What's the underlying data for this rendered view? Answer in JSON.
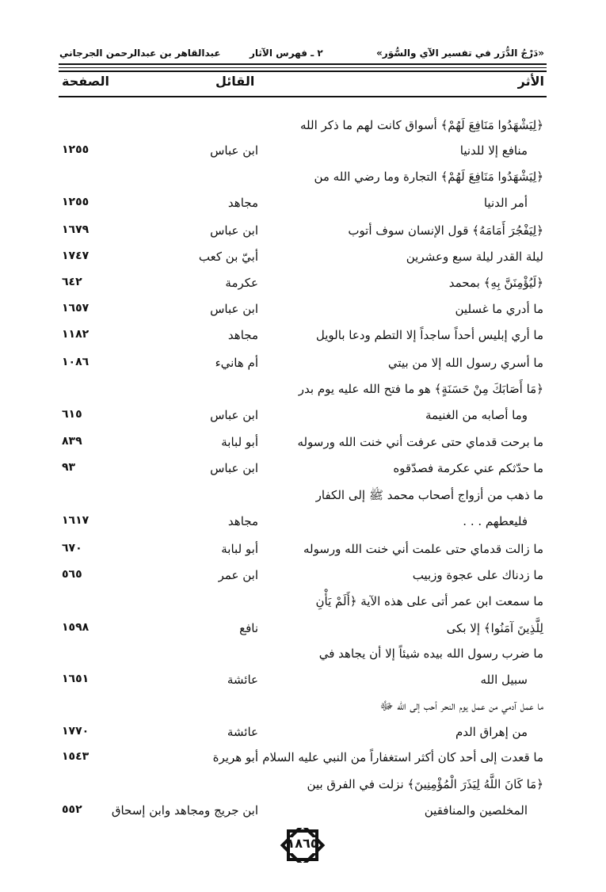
{
  "header": {
    "book_title": "«دَرْجُ الدُّرَر في تفسير الآي والسُّوَر»",
    "section": "٢ ـ فهرس الآثار",
    "author": "عبدالقاهر بن عبدالرحمن الجرجاني"
  },
  "columns": {
    "athar": "الأثر",
    "qail": "القائل",
    "page": "الصفحة"
  },
  "lines": [
    {
      "text": "﴿لِيَشْهَدُوا مَنَافِعَ لَهُمْ﴾ أسواق كانت لهم ما ذكر الله",
      "speaker": "",
      "page": ""
    },
    {
      "text": "منافع إلا للدنيا",
      "speaker": "ابن عباس",
      "page": "١٢٥٥",
      "indent": true
    },
    {
      "text": "﴿لِيَشْهَدُوا مَنَافِعَ لَهُمْ﴾ التجارة وما رضي الله من",
      "speaker": "",
      "page": ""
    },
    {
      "text": "أمر الدنيا",
      "speaker": "مجاهد",
      "page": "١٢٥٥",
      "indent": true
    },
    {
      "text": "﴿لِيَفْجُرَ أَمَامَهُ﴾ قول الإنسان سوف أتوب",
      "speaker": "ابن عباس",
      "page": "١٦٧٩"
    },
    {
      "text": "ليلة القدر ليلة سبع وعشرين",
      "speaker": "أبيّ بن كعب",
      "page": "١٧٤٧"
    },
    {
      "text": "﴿لَيُؤْمِنَنَّ بِهِ﴾ بمحمد",
      "speaker": "عكرمة",
      "page": "٦٤٢"
    },
    {
      "text": "ما أدري ما غسلين",
      "speaker": "ابن عباس",
      "page": "١٦٥٧"
    },
    {
      "text": "ما أري إبليس أحداً ساجداً إلا التطم ودعا بالويل",
      "speaker": "مجاهد",
      "page": "١١٨٢"
    },
    {
      "text": "ما أسري رسول الله إلا من بيتي",
      "speaker": "أم هانيء",
      "page": "١٠٨٦"
    },
    {
      "text": "﴿مَا أَصَابَكَ مِنْ حَسَنَةٍ﴾ هو ما فتح الله عليه يوم بدر",
      "speaker": "",
      "page": ""
    },
    {
      "text": "وما أصابه من الغنيمة",
      "speaker": "ابن عباس",
      "page": "٦١٥",
      "indent": true
    },
    {
      "text": "ما برحت قدماي حتى عرفت أني خنت الله ورسوله",
      "speaker": "أبو لبابة",
      "page": "٨٣٩"
    },
    {
      "text": "ما حدّثكم عني عكرمة فصدّقوه",
      "speaker": "ابن عباس",
      "page": "٩٣"
    },
    {
      "text": "ما ذهب من أزواج أصحاب محمد ﷺ إلى الكفار",
      "speaker": "",
      "page": ""
    },
    {
      "text": "فليعطهم . . .",
      "speaker": "مجاهد",
      "page": "١٦١٧",
      "indent": true
    },
    {
      "text": "ما زالت قدماي حتى علمت أني خنت الله ورسوله",
      "speaker": "أبو لبابة",
      "page": "٦٧٠"
    },
    {
      "text": "ما زدناك على عجوة وزبيب",
      "speaker": "ابن عمر",
      "page": "٥٦٥"
    },
    {
      "text": "ما سمعت ابن عمر أتى على هذه الآية ﴿أَلَمْ يَأْنِ",
      "speaker": "",
      "page": ""
    },
    {
      "text": "لِلَّذِينَ آمَنُوا﴾ إلا بكى",
      "speaker": "نافع",
      "page": "١٥٩٨"
    },
    {
      "text": "ما ضرب رسول الله بيده شيئاً إلا أن يجاهد في",
      "speaker": "",
      "page": ""
    },
    {
      "text": "سبيل الله",
      "speaker": "عائشة",
      "page": "١٦٥١",
      "indent": true
    },
    {
      "text": "ما عمل آدمي من عمل يوم النحر أحب إلى الله ﷻ",
      "speaker": "",
      "page": ""
    },
    {
      "text": "من إهراق الدم",
      "speaker": "عائشة",
      "page": "١٧٧٠",
      "indent": true
    },
    {
      "text": "ما قعدت إلى أحد كان أكثر استغفاراً من النبي عليه السلام",
      "speaker": "أبو هريرة",
      "page": "١٥٤٣"
    },
    {
      "text": "﴿مَا كَانَ اللَّهُ لِيَذَرَ الْمُؤْمِنِينَ﴾ نزلت في الفرق بين",
      "speaker": "",
      "page": ""
    },
    {
      "text": "المخلصين والمنافقين",
      "speaker": "ابن جريج ومجاهد وابن إسحاق",
      "page": "٥٥٢",
      "indent": true
    }
  ],
  "footer": {
    "page_number": "١٨٦٥"
  }
}
